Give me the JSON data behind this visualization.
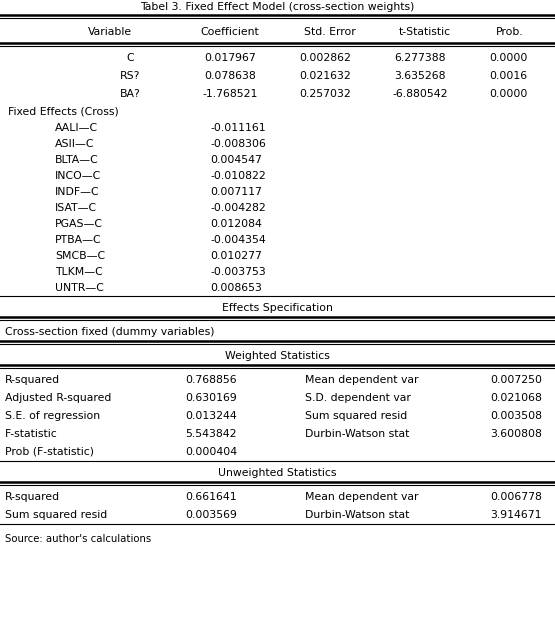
{
  "title": "Tabel 3. Fixed Effect Model (cross-section weights)",
  "header": [
    "Variable",
    "Coefficient",
    "Std. Error",
    "t-Statistic",
    "Prob."
  ],
  "main_rows": [
    [
      "C",
      "0.017967",
      "0.002862",
      "6.277388",
      "0.0000"
    ],
    [
      "RS?",
      "0.078638",
      "0.021632",
      "3.635268",
      "0.0016"
    ],
    [
      "BA?",
      "-1.768521",
      "0.257032",
      "-6.880542",
      "0.0000"
    ]
  ],
  "fixed_effects_label": "Fixed Effects (Cross)",
  "fixed_effects_rows": [
    [
      "AALI—C",
      "-0.011161"
    ],
    [
      "ASII—C",
      "-0.008306"
    ],
    [
      "BLTA—C",
      "0.004547"
    ],
    [
      "INCO—C",
      "-0.010822"
    ],
    [
      "INDF—C",
      "0.007117"
    ],
    [
      "ISAT—C",
      "-0.004282"
    ],
    [
      "PGAS—C",
      "0.012084"
    ],
    [
      "PTBA—C",
      "-0.004354"
    ],
    [
      "SMCB—C",
      "0.010277"
    ],
    [
      "TLKM—C",
      "-0.003753"
    ],
    [
      "UNTR—C",
      "0.008653"
    ]
  ],
  "effects_spec_label": "Effects Specification",
  "cross_section_label": "Cross-section fixed (dummy variables)",
  "weighted_label": "Weighted Statistics",
  "weighted_rows": [
    [
      "R-squared",
      "0.768856",
      "Mean dependent var",
      "0.007250"
    ],
    [
      "Adjusted R-squared",
      "0.630169",
      "S.D. dependent var",
      "0.021068"
    ],
    [
      "S.E. of regression",
      "0.013244",
      "Sum squared resid",
      "0.003508"
    ],
    [
      "F-statistic",
      "5.543842",
      "Durbin-Watson stat",
      "3.600808"
    ],
    [
      "Prob (F-statistic)",
      "0.000404",
      "",
      ""
    ]
  ],
  "unweighted_label": "Unweighted Statistics",
  "unweighted_rows": [
    [
      "R-squared",
      "0.661641",
      "Mean dependent var",
      "0.006778"
    ],
    [
      "Sum squared resid",
      "0.003569",
      "Durbin-Watson stat",
      "3.914671"
    ]
  ],
  "footer": "Source: author's calculations",
  "bg_color": "#ffffff",
  "text_color": "#000000",
  "font_size": 7.8
}
